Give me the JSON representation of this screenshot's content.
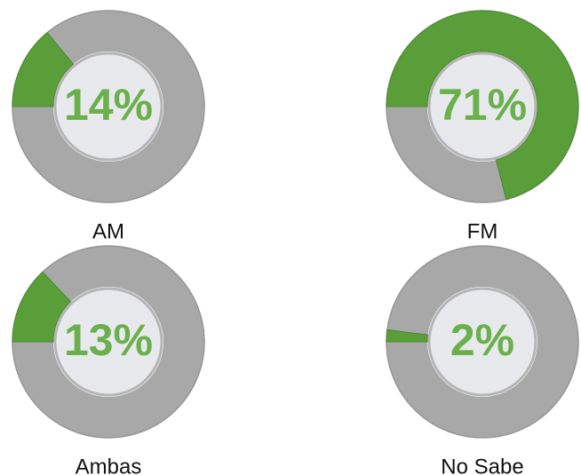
{
  "chart_data": [
    {
      "type": "donut",
      "title": "AM",
      "values": [
        14
      ],
      "value_labels": [
        "14%"
      ],
      "color": "#5a9e3a"
    },
    {
      "type": "donut",
      "title": "FM",
      "values": [
        71
      ],
      "value_labels": [
        "71%"
      ],
      "color": "#5a9e3a"
    },
    {
      "type": "donut",
      "title": "Ambas",
      "values": [
        13
      ],
      "value_labels": [
        "13%"
      ],
      "color": "#5a9e3a"
    },
    {
      "type": "donut",
      "title": "No Sabe",
      "values": [
        2
      ],
      "value_labels": [
        "2%"
      ],
      "color": "#5a9e3a"
    }
  ]
}
